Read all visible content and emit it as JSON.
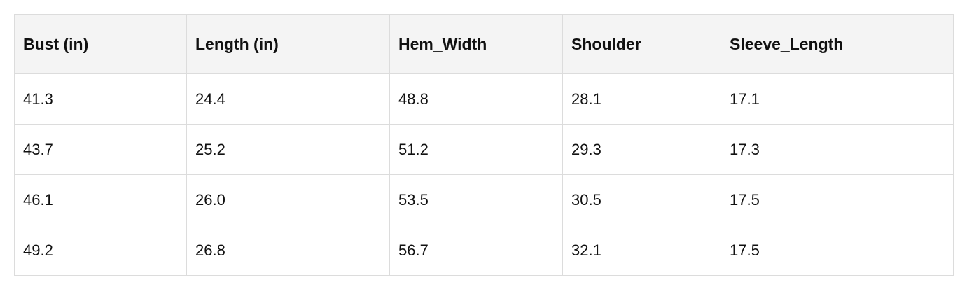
{
  "table": {
    "headers": [
      "Bust (in)",
      "Length (in)",
      "Hem_Width",
      "Shoulder",
      "Sleeve_Length"
    ],
    "rows": [
      [
        "41.3",
        "24.4",
        "48.8",
        "28.1",
        "17.1"
      ],
      [
        "43.7",
        "25.2",
        "51.2",
        "29.3",
        "17.3"
      ],
      [
        "46.1",
        "26.0",
        "53.5",
        "30.5",
        "17.5"
      ],
      [
        "49.2",
        "26.8",
        "56.7",
        "32.1",
        "17.5"
      ]
    ]
  }
}
